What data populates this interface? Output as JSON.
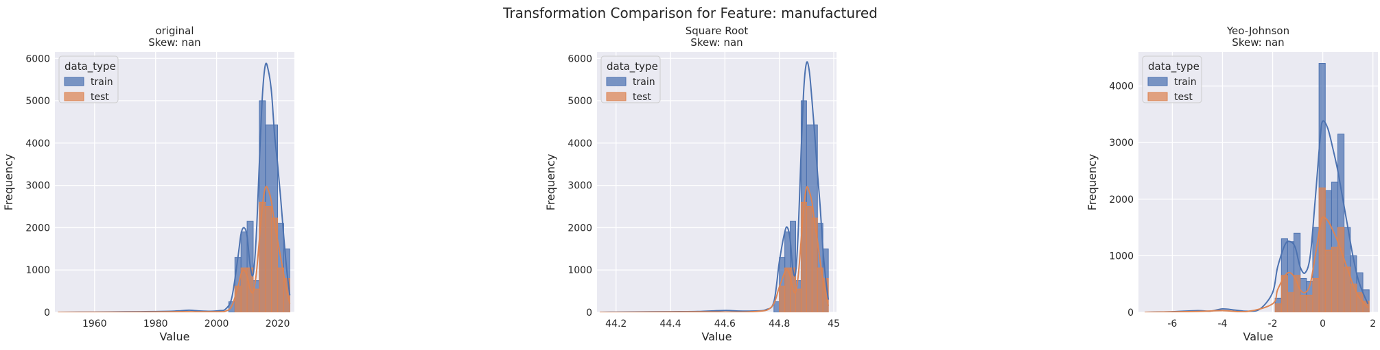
{
  "suptitle": "Transformation Comparison for Feature: manufactured",
  "colors": {
    "background": "#EAEAF2",
    "grid": "#FFFFFF",
    "train": "#4C72B0",
    "test": "#DD8452"
  },
  "chart_data": [
    {
      "type": "histogram",
      "title_line1": "original",
      "title_line2": "Skew: nan",
      "xlabel": "Value",
      "ylabel": "Frequency",
      "xlim": [
        1947,
        2025.5
      ],
      "ylim": [
        0,
        6150
      ],
      "xticks": [
        1960,
        1980,
        2000,
        2020
      ],
      "yticks": [
        0,
        1000,
        2000,
        3000,
        4000,
        5000,
        6000
      ],
      "legend": {
        "title": "data_type",
        "placement": "top-left",
        "entries": [
          "train",
          "test"
        ]
      },
      "series": [
        {
          "name": "train",
          "bins": [
            [
              2004,
              2006,
              250
            ],
            [
              2006,
              2008,
              1300
            ],
            [
              2008,
              2010,
              1900
            ],
            [
              2010,
              2012,
              2150
            ],
            [
              2012,
              2014,
              750
            ],
            [
              2014,
              2016,
              5000
            ],
            [
              2016,
              2020,
              4430
            ],
            [
              2020,
              2022,
              2100
            ],
            [
              2022,
              2024,
              1500
            ]
          ],
          "kde_x": [
            1948,
            1955,
            1960,
            1965,
            1970,
            1975,
            1980,
            1985,
            1988,
            1991,
            1994,
            1998,
            2001,
            2003,
            2005,
            2007,
            2008,
            2009,
            2010,
            2011,
            2012,
            2013,
            2014,
            2015,
            2016,
            2017,
            2018,
            2019,
            2020,
            2021,
            2022,
            2023,
            2024
          ],
          "kde_y": [
            0,
            3,
            5,
            8,
            12,
            15,
            18,
            25,
            35,
            50,
            35,
            25,
            40,
            80,
            350,
            1300,
            1850,
            2000,
            1800,
            1100,
            900,
            1800,
            3500,
            5100,
            5850,
            5700,
            5200,
            4200,
            3500,
            2700,
            1800,
            1000,
            400
          ]
        },
        {
          "name": "test",
          "bins": [
            [
              2006,
              2008,
              620
            ],
            [
              2008,
              2010,
              1050
            ],
            [
              2010,
              2012,
              1050
            ],
            [
              2012,
              2014,
              550
            ],
            [
              2014,
              2016,
              2600
            ],
            [
              2016,
              2018,
              2500
            ],
            [
              2018,
              2020,
              2230
            ],
            [
              2020,
              2022,
              1050
            ],
            [
              2022,
              2024,
              800
            ]
          ],
          "kde_x": [
            1948,
            1960,
            1980,
            1990,
            2000,
            2003,
            2005,
            2007,
            2008,
            2009,
            2010,
            2011,
            2012,
            2013,
            2014,
            2015,
            2016,
            2017,
            2018,
            2019,
            2020,
            2021,
            2022,
            2023,
            2024
          ],
          "kde_y": [
            0,
            2,
            8,
            15,
            12,
            30,
            150,
            600,
            900,
            1000,
            850,
            550,
            480,
            900,
            1700,
            2500,
            2950,
            2880,
            2600,
            2100,
            1700,
            1300,
            900,
            500,
            200
          ]
        }
      ]
    },
    {
      "type": "histogram",
      "title_line1": "Square Root",
      "title_line2": "Skew: nan",
      "xlabel": "Value",
      "ylabel": "Frequency",
      "xlim": [
        44.13,
        45.01
      ],
      "ylim": [
        0,
        6150
      ],
      "xticks": [
        44.2,
        44.4,
        44.6,
        44.8,
        45.0
      ],
      "yticks": [
        0,
        1000,
        2000,
        3000,
        4000,
        5000,
        6000
      ],
      "legend": {
        "title": "data_type",
        "placement": "top-left",
        "entries": [
          "train",
          "test"
        ]
      },
      "series": [
        {
          "name": "train",
          "bins": [
            [
              44.78,
              44.8,
              250
            ],
            [
              44.8,
              44.82,
              1300
            ],
            [
              44.82,
              44.84,
              1900
            ],
            [
              44.84,
              44.86,
              2150
            ],
            [
              44.86,
              44.88,
              750
            ],
            [
              44.88,
              44.9,
              5000
            ],
            [
              44.9,
              44.94,
              4430
            ],
            [
              44.94,
              44.96,
              2100
            ],
            [
              44.96,
              44.98,
              1500
            ]
          ],
          "kde_x": [
            44.14,
            44.2,
            44.3,
            44.4,
            44.5,
            44.6,
            44.65,
            44.7,
            44.75,
            44.78,
            44.8,
            44.82,
            44.83,
            44.84,
            44.85,
            44.86,
            44.87,
            44.88,
            44.89,
            44.9,
            44.91,
            44.92,
            44.93,
            44.94,
            44.95,
            44.96,
            44.97,
            44.98
          ],
          "kde_y": [
            0,
            5,
            10,
            15,
            20,
            45,
            30,
            30,
            60,
            250,
            1200,
            1900,
            2000,
            1700,
            1000,
            950,
            2000,
            3800,
            5300,
            5900,
            5700,
            5000,
            4200,
            3300,
            2500,
            1500,
            800,
            300
          ]
        },
        {
          "name": "test",
          "bins": [
            [
              44.8,
              44.82,
              620
            ],
            [
              44.82,
              44.84,
              1050
            ],
            [
              44.84,
              44.86,
              1050
            ],
            [
              44.86,
              44.88,
              550
            ],
            [
              44.88,
              44.9,
              2600
            ],
            [
              44.9,
              44.92,
              2500
            ],
            [
              44.92,
              44.94,
              2230
            ],
            [
              44.94,
              44.96,
              1050
            ],
            [
              44.96,
              44.98,
              800
            ]
          ],
          "kde_x": [
            44.14,
            44.3,
            44.5,
            44.7,
            44.77,
            44.8,
            44.82,
            44.83,
            44.84,
            44.85,
            44.86,
            44.87,
            44.88,
            44.89,
            44.9,
            44.91,
            44.92,
            44.93,
            44.94,
            44.95,
            44.96,
            44.97,
            44.98
          ],
          "kde_y": [
            0,
            3,
            10,
            15,
            120,
            600,
            950,
            1000,
            850,
            550,
            480,
            900,
            1700,
            2500,
            2950,
            2850,
            2600,
            2100,
            1700,
            1200,
            800,
            450,
            150
          ]
        }
      ]
    },
    {
      "type": "histogram",
      "title_line1": "Yeo-Johnson",
      "title_line2": "Skew: nan",
      "xlabel": "Value",
      "ylabel": "Frequency",
      "xlim": [
        -7.35,
        2.2
      ],
      "ylim": [
        0,
        4600
      ],
      "xticks": [
        -6,
        -4,
        -2,
        0,
        2
      ],
      "yticks": [
        0,
        1000,
        2000,
        3000,
        4000
      ],
      "legend": {
        "title": "data_type",
        "placement": "top-left",
        "entries": [
          "train",
          "test"
        ]
      },
      "series": [
        {
          "name": "train",
          "bins": [
            [
              -1.9,
              -1.65,
              250
            ],
            [
              -1.65,
              -1.4,
              1300
            ],
            [
              -1.4,
              -1.15,
              1250
            ],
            [
              -1.15,
              -0.9,
              1400
            ],
            [
              -0.9,
              -0.65,
              600
            ],
            [
              -0.65,
              -0.4,
              550
            ],
            [
              -0.4,
              -0.15,
              1500
            ],
            [
              -0.15,
              0.1,
              4400
            ],
            [
              0.1,
              0.35,
              2150
            ],
            [
              0.35,
              0.6,
              2300
            ],
            [
              0.6,
              0.85,
              3150
            ],
            [
              0.85,
              1.1,
              1500
            ],
            [
              1.1,
              1.35,
              1000
            ],
            [
              1.35,
              1.6,
              700
            ],
            [
              1.6,
              1.85,
              400
            ]
          ],
          "kde_x": [
            -7.1,
            -6,
            -5,
            -4.5,
            -4,
            -3.5,
            -3,
            -2.5,
            -2,
            -1.8,
            -1.5,
            -1.3,
            -1.1,
            -0.9,
            -0.7,
            -0.5,
            -0.3,
            -0.1,
            0,
            0.2,
            0.4,
            0.6,
            0.8,
            1.0,
            1.2,
            1.4,
            1.6,
            1.8
          ],
          "kde_y": [
            0,
            10,
            30,
            20,
            60,
            40,
            20,
            60,
            350,
            800,
            1200,
            1250,
            1150,
            800,
            700,
            1000,
            2000,
            3100,
            3380,
            3250,
            2900,
            2500,
            2000,
            1500,
            1000,
            600,
            350,
            150
          ]
        },
        {
          "name": "test",
          "bins": [
            [
              -1.9,
              -1.65,
              150
            ],
            [
              -1.65,
              -1.4,
              650
            ],
            [
              -1.4,
              -1.15,
              350
            ],
            [
              -1.15,
              -0.9,
              650
            ],
            [
              -0.9,
              -0.65,
              300
            ],
            [
              -0.65,
              -0.4,
              300
            ],
            [
              -0.4,
              -0.15,
              600
            ],
            [
              -0.15,
              0.1,
              2200
            ],
            [
              0.1,
              0.35,
              1100
            ],
            [
              0.35,
              0.6,
              1150
            ],
            [
              0.6,
              0.85,
              1500
            ],
            [
              0.85,
              1.1,
              800
            ],
            [
              1.1,
              1.35,
              500
            ],
            [
              1.35,
              1.6,
              350
            ],
            [
              1.6,
              1.85,
              200
            ]
          ],
          "kde_x": [
            -7.1,
            -5,
            -4,
            -3,
            -2,
            -1.8,
            -1.5,
            -1.3,
            -1.1,
            -0.9,
            -0.7,
            -0.5,
            -0.3,
            -0.1,
            0,
            0.2,
            0.4,
            0.6,
            0.8,
            1.0,
            1.2,
            1.4,
            1.6,
            1.8
          ],
          "kde_y": [
            0,
            15,
            30,
            15,
            150,
            400,
            650,
            700,
            600,
            400,
            350,
            500,
            1000,
            1550,
            1680,
            1620,
            1450,
            1250,
            1000,
            750,
            500,
            300,
            180,
            80
          ]
        }
      ]
    }
  ]
}
